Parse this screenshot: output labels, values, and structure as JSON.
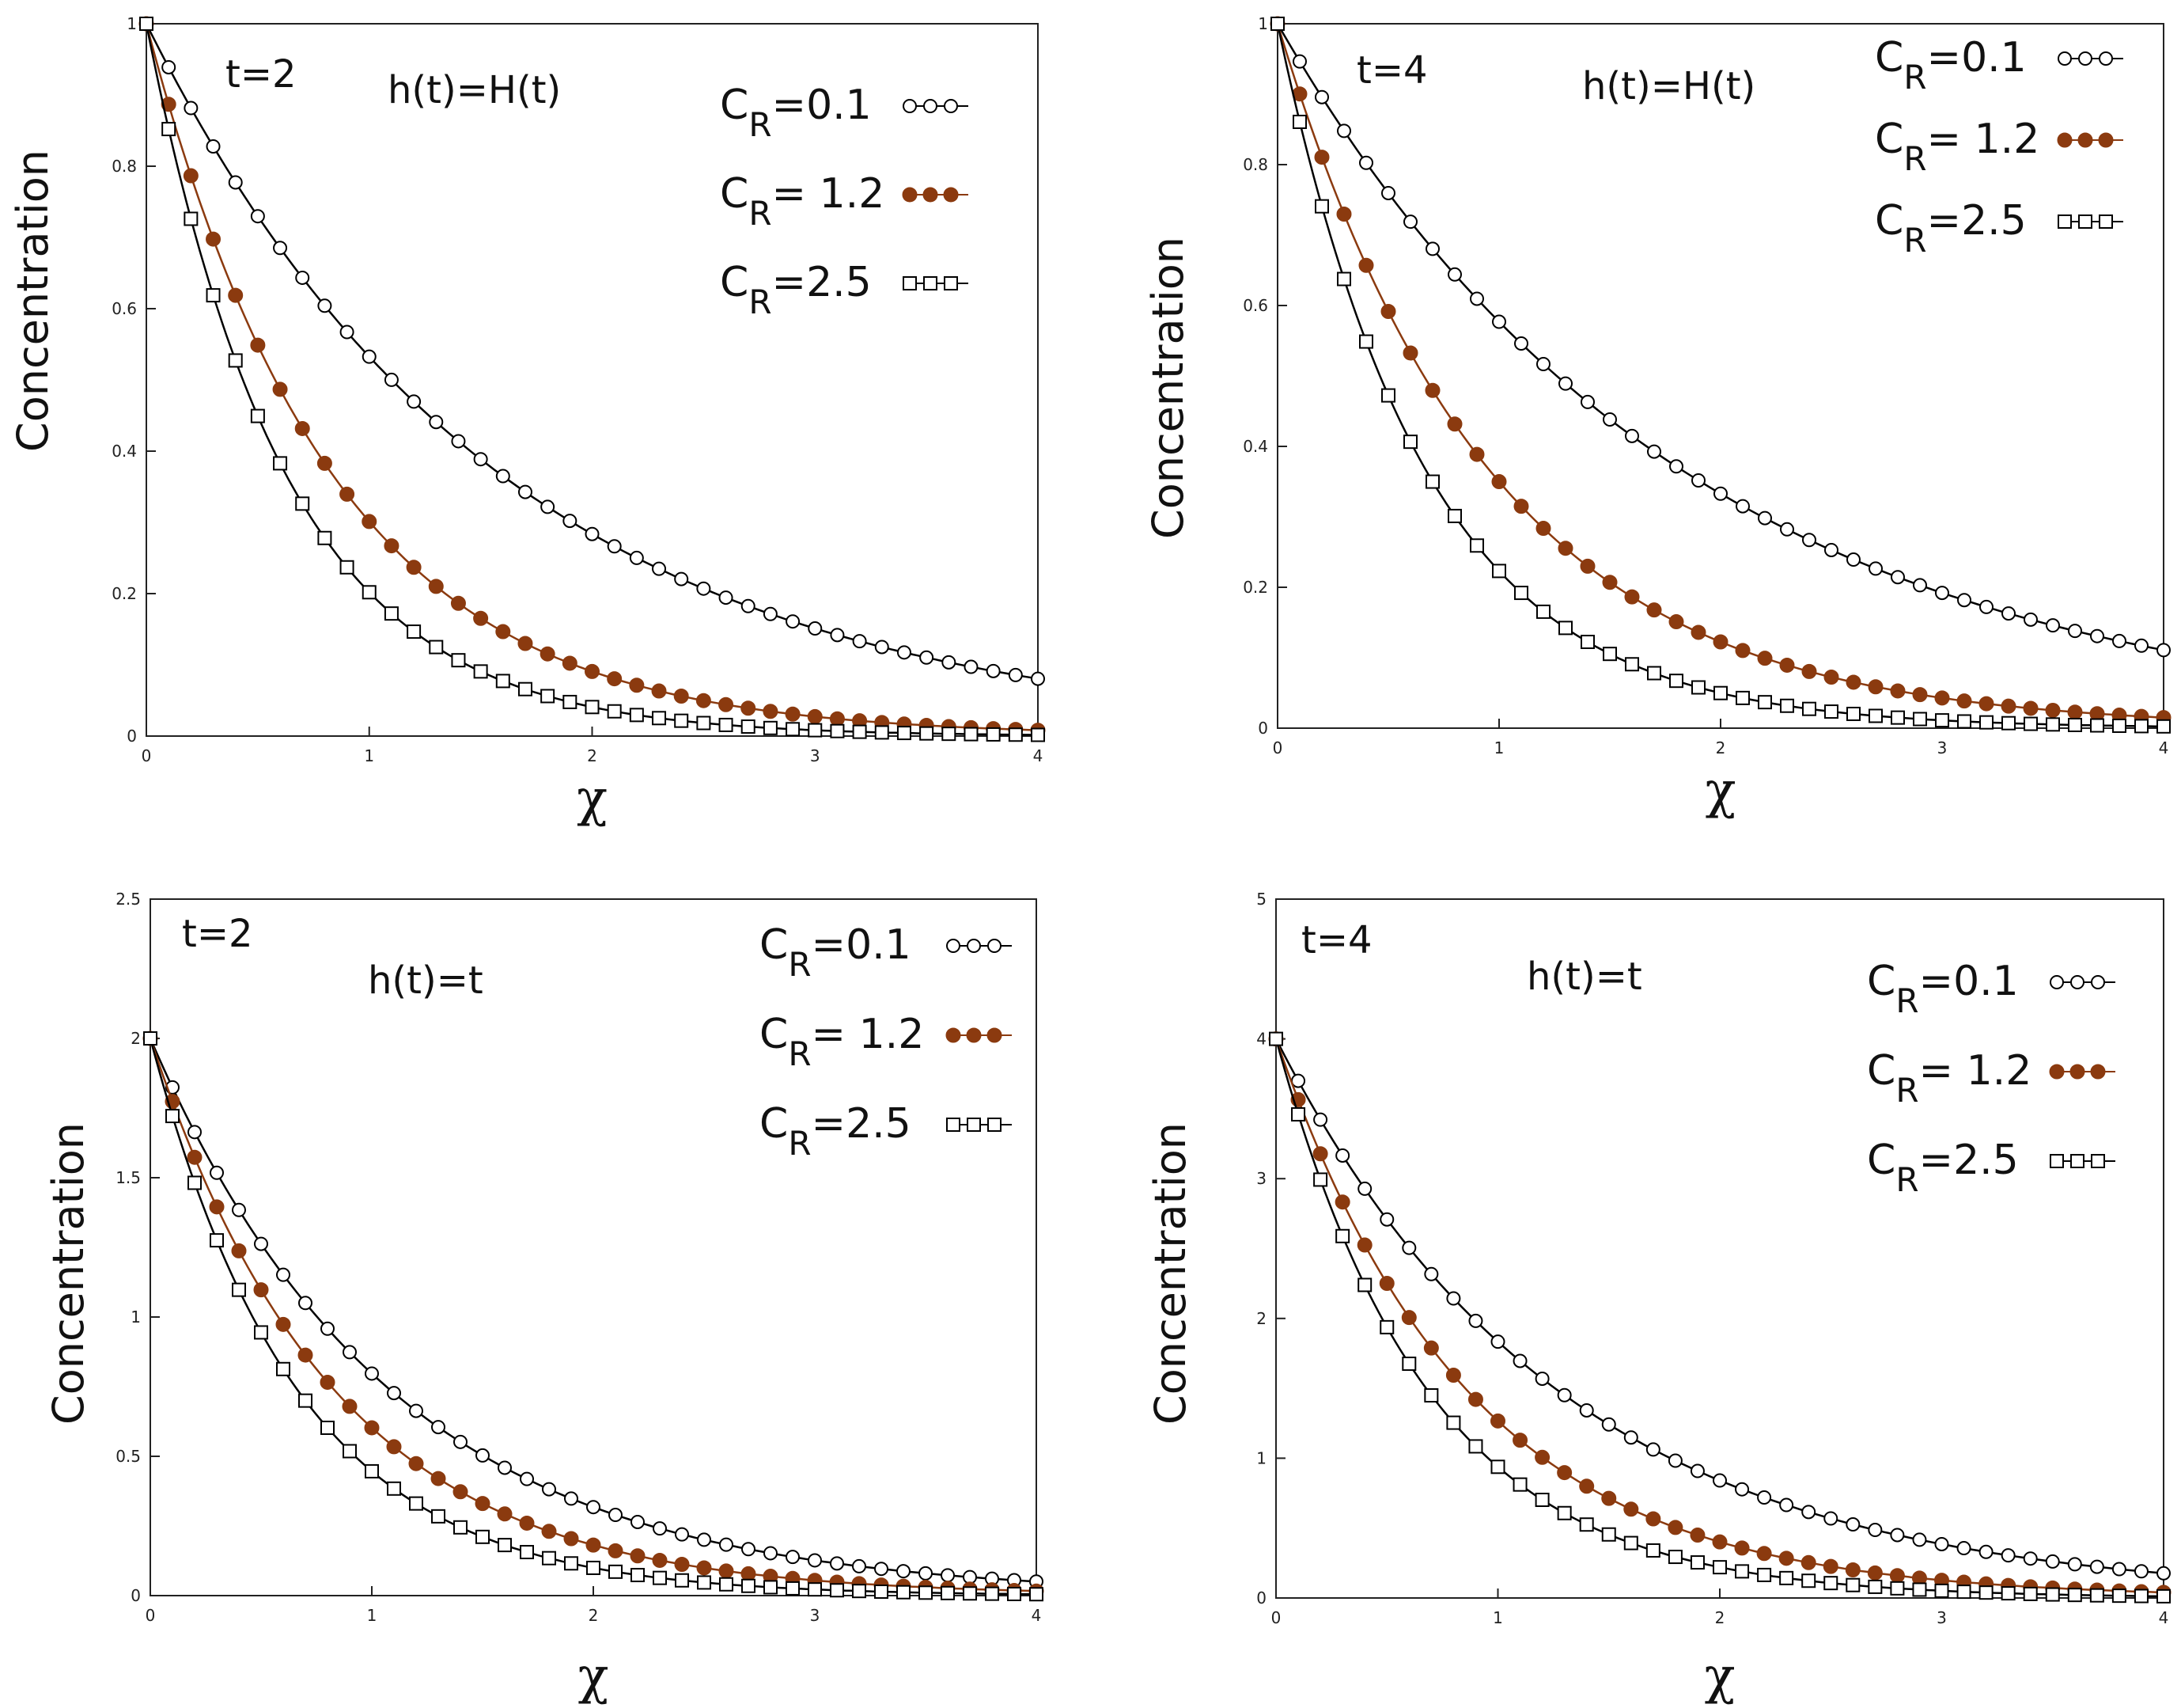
{
  "chart_data": [
    {
      "type": "line",
      "panel": "top-left",
      "annotations": {
        "time": "t=2",
        "h_function": "h(t)=H(t)"
      },
      "xlabel": "χ",
      "ylabel": "Concentration",
      "xlim": [
        0,
        4
      ],
      "ylim": [
        0,
        1
      ],
      "xticks": [
        "0",
        "1",
        "2",
        "3",
        "4"
      ],
      "yticks": [
        "0",
        "0.2",
        "0.4",
        "0.6",
        "0.8",
        "1"
      ],
      "legend_position": "top-right",
      "series": [
        {
          "name_base": "C",
          "name_sub": "R",
          "name_value": "=0.1",
          "marker": "open-circle",
          "color": "#000000",
          "amplitude": 1,
          "decay": 0.63
        },
        {
          "name_base": "C",
          "name_sub": "R",
          "name_value": "= 1.2",
          "marker": "filled-circle",
          "color": "#8B3A0F",
          "amplitude": 1,
          "decay": 1.2
        },
        {
          "name_base": "C",
          "name_sub": "R",
          "name_value": "=2.5",
          "marker": "open-square",
          "color": "#000000",
          "amplitude": 1,
          "decay": 1.6
        }
      ]
    },
    {
      "type": "line",
      "panel": "top-right",
      "annotations": {
        "time": "t=4",
        "h_function": "h(t)=H(t)"
      },
      "xlabel": "χ",
      "ylabel": "Concentration",
      "xlim": [
        0,
        4
      ],
      "ylim": [
        0,
        1
      ],
      "xticks": [
        "0",
        "1",
        "2",
        "3",
        "4"
      ],
      "yticks": [
        "0",
        "0.2",
        "0.4",
        "0.6",
        "0.8",
        "1"
      ],
      "legend_position": "top-right",
      "series": [
        {
          "name_base": "C",
          "name_sub": "R",
          "name_value": "=0.1",
          "marker": "open-circle",
          "color": "#000000",
          "amplitude": 1,
          "decay": 0.55
        },
        {
          "name_base": "C",
          "name_sub": "R",
          "name_value": "= 1.2",
          "marker": "filled-circle",
          "color": "#8B3A0F",
          "amplitude": 1,
          "decay": 1.05
        },
        {
          "name_base": "C",
          "name_sub": "R",
          "name_value": "=2.5",
          "marker": "open-square",
          "color": "#000000",
          "amplitude": 1,
          "decay": 1.5
        }
      ]
    },
    {
      "type": "line",
      "panel": "bottom-left",
      "annotations": {
        "time": "t=2",
        "h_function": "h(t)=t"
      },
      "xlabel": "χ",
      "ylabel": "Concentration",
      "xlim": [
        0,
        4
      ],
      "ylim": [
        0,
        2.5
      ],
      "xticks": [
        "0",
        "1",
        "2",
        "3",
        "4"
      ],
      "yticks": [
        "0",
        "0.5",
        "1",
        "1.5",
        "2",
        "2.5"
      ],
      "legend_position": "top-right",
      "series": [
        {
          "name_base": "C",
          "name_sub": "R",
          "name_value": "=0.1",
          "marker": "open-circle",
          "color": "#000000",
          "amplitude": 2,
          "decay": 0.92
        },
        {
          "name_base": "C",
          "name_sub": "R",
          "name_value": "= 1.2",
          "marker": "filled-circle",
          "color": "#8B3A0F",
          "amplitude": 2,
          "decay": 1.2
        },
        {
          "name_base": "C",
          "name_sub": "R",
          "name_value": "=2.5",
          "marker": "open-square",
          "color": "#000000",
          "amplitude": 2,
          "decay": 1.5
        }
      ]
    },
    {
      "type": "line",
      "panel": "bottom-right",
      "annotations": {
        "time": "t=4",
        "h_function": "h(t)=t"
      },
      "xlabel": "χ",
      "ylabel": "Concentration",
      "xlim": [
        0,
        4
      ],
      "ylim": [
        0,
        5
      ],
      "xticks": [
        "0",
        "1",
        "2",
        "3",
        "4"
      ],
      "yticks": [
        "0",
        "1",
        "2",
        "3",
        "4",
        "5"
      ],
      "legend_position": "top-right",
      "series": [
        {
          "name_base": "C",
          "name_sub": "R",
          "name_value": "=0.1",
          "marker": "open-circle",
          "color": "#000000",
          "amplitude": 4,
          "decay": 0.78
        },
        {
          "name_base": "C",
          "name_sub": "R",
          "name_value": "= 1.2",
          "marker": "filled-circle",
          "color": "#8B3A0F",
          "amplitude": 4,
          "decay": 1.15
        },
        {
          "name_base": "C",
          "name_sub": "R",
          "name_value": "=2.5",
          "marker": "open-square",
          "color": "#000000",
          "amplitude": 4,
          "decay": 1.45
        }
      ]
    }
  ]
}
